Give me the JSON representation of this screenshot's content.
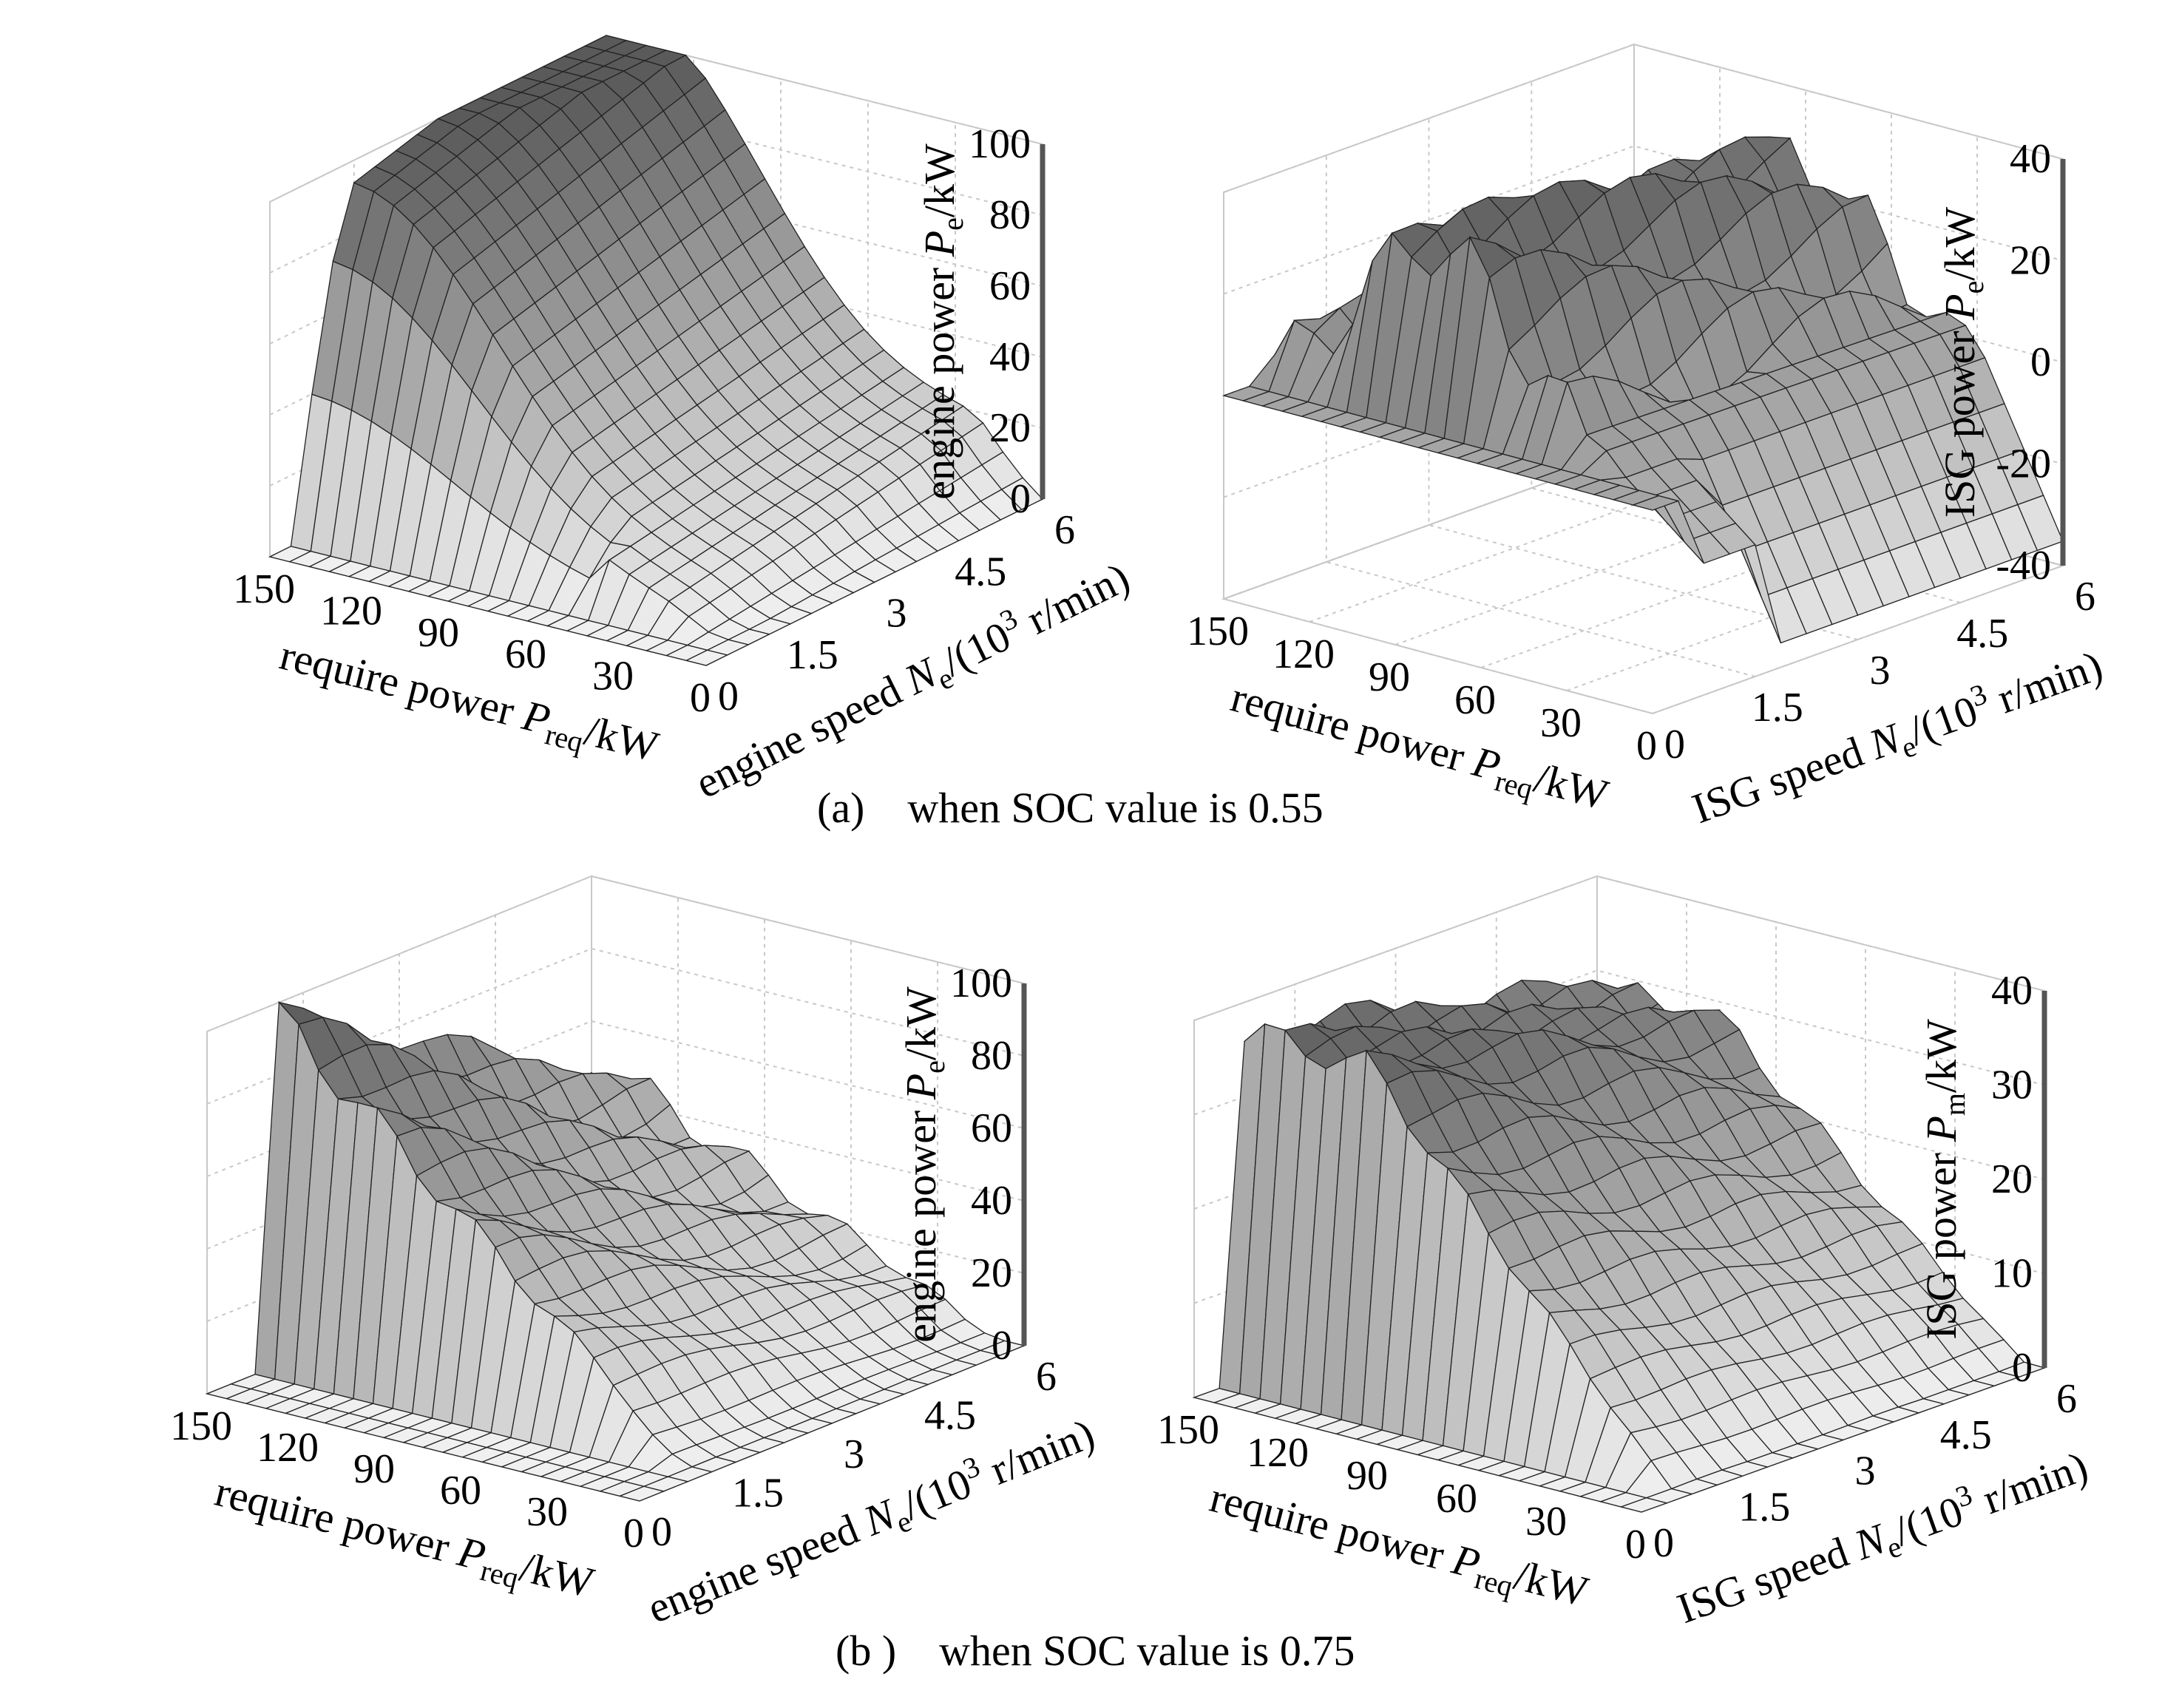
{
  "figure": {
    "caption_a": "(a)    when SOC value is 0.55",
    "caption_b": "(b )    when SOC value is 0.75"
  },
  "chart_data": [
    {
      "type": "surface3d",
      "id": "a_left",
      "title": "",
      "zlabel": "engine power",
      "zsym": "P",
      "zsub": "e",
      "zunit": "/kW",
      "xlabel": "require power ",
      "xsym": "P",
      "xsub": "req",
      "xunit": "/kW",
      "ylabel": "engine speed ",
      "ysym": "N",
      "ysub": "e",
      "yunit_pre": "/(10",
      "yunit_sup": "3",
      "yunit_post": " r/min)",
      "xticks": [
        "150",
        "120",
        "90",
        "60",
        "30",
        "0"
      ],
      "yticks": [
        "0",
        "1.5",
        "3",
        "4.5",
        "6"
      ],
      "zticks": [
        "0",
        "20",
        "40",
        "60",
        "80",
        "100"
      ],
      "xlim": [
        0,
        150
      ],
      "ylim": [
        0,
        6
      ],
      "zlim": [
        0,
        100
      ],
      "surface": "engine_055",
      "z_ridge_max": 105
    },
    {
      "type": "surface3d",
      "id": "a_right",
      "title": "",
      "zlabel": "ISG power",
      "zsym": "P",
      "zsub": "e",
      "zunit": "/kW",
      "xlabel": "require power ",
      "xsym": "P",
      "xsub": "req",
      "xunit": "/kW",
      "ylabel": "ISG speed ",
      "ysym": "N",
      "ysub": "e",
      "yunit_pre": "/(10",
      "yunit_sup": "3",
      "yunit_post": " r/min)",
      "xticks": [
        "150",
        "120",
        "90",
        "60",
        "30",
        "0"
      ],
      "yticks": [
        "0",
        "1.5",
        "3",
        "4.5",
        "6"
      ],
      "zticks": [
        "-40",
        "-20",
        "0",
        "20",
        "40"
      ],
      "xlim": [
        0,
        150
      ],
      "ylim": [
        0,
        6
      ],
      "zlim": [
        -40,
        40
      ],
      "surface": "isg_055",
      "z_ridge_max": 45
    },
    {
      "type": "surface3d",
      "id": "b_left",
      "title": "",
      "zlabel": "engine power",
      "zsym": "P",
      "zsub": "e",
      "zunit": "/kW",
      "xlabel": "require power ",
      "xsym": "P",
      "xsub": "req",
      "xunit": "/kW",
      "ylabel": "engine speed ",
      "ysym": "N",
      "ysub": "e",
      "yunit_pre": "/(10",
      "yunit_sup": "3",
      "yunit_post": " r/min)",
      "xticks": [
        "150",
        "120",
        "90",
        "60",
        "30",
        "0"
      ],
      "yticks": [
        "0",
        "1.5",
        "3",
        "4.5",
        "6"
      ],
      "zticks": [
        "0",
        "20",
        "40",
        "60",
        "80",
        "100"
      ],
      "xlim": [
        0,
        150
      ],
      "ylim": [
        0,
        6
      ],
      "zlim": [
        0,
        100
      ],
      "surface": "engine_075",
      "z_ridge_max": 110
    },
    {
      "type": "surface3d",
      "id": "b_right",
      "title": "",
      "zlabel": "ISG power",
      "zsym": "P",
      "zsub": "m",
      "zunit": "/kW",
      "xlabel": "require power ",
      "xsym": "P",
      "xsub": "req",
      "xunit": "/kW",
      "ylabel": "ISG speed ",
      "ysym": "N",
      "ysub": "e",
      "yunit_pre": "/(10",
      "yunit_sup": "3",
      "yunit_post": " r/min)",
      "xticks": [
        "150",
        "120",
        "90",
        "60",
        "30",
        "0"
      ],
      "yticks": [
        "0",
        "1.5",
        "3",
        "4.5",
        "6"
      ],
      "zticks": [
        "0",
        "10",
        "20",
        "30",
        "40"
      ],
      "xlim": [
        0,
        150
      ],
      "ylim": [
        0,
        6
      ],
      "zlim": [
        0,
        40
      ],
      "surface": "isg_075",
      "z_ridge_max": 48
    }
  ]
}
